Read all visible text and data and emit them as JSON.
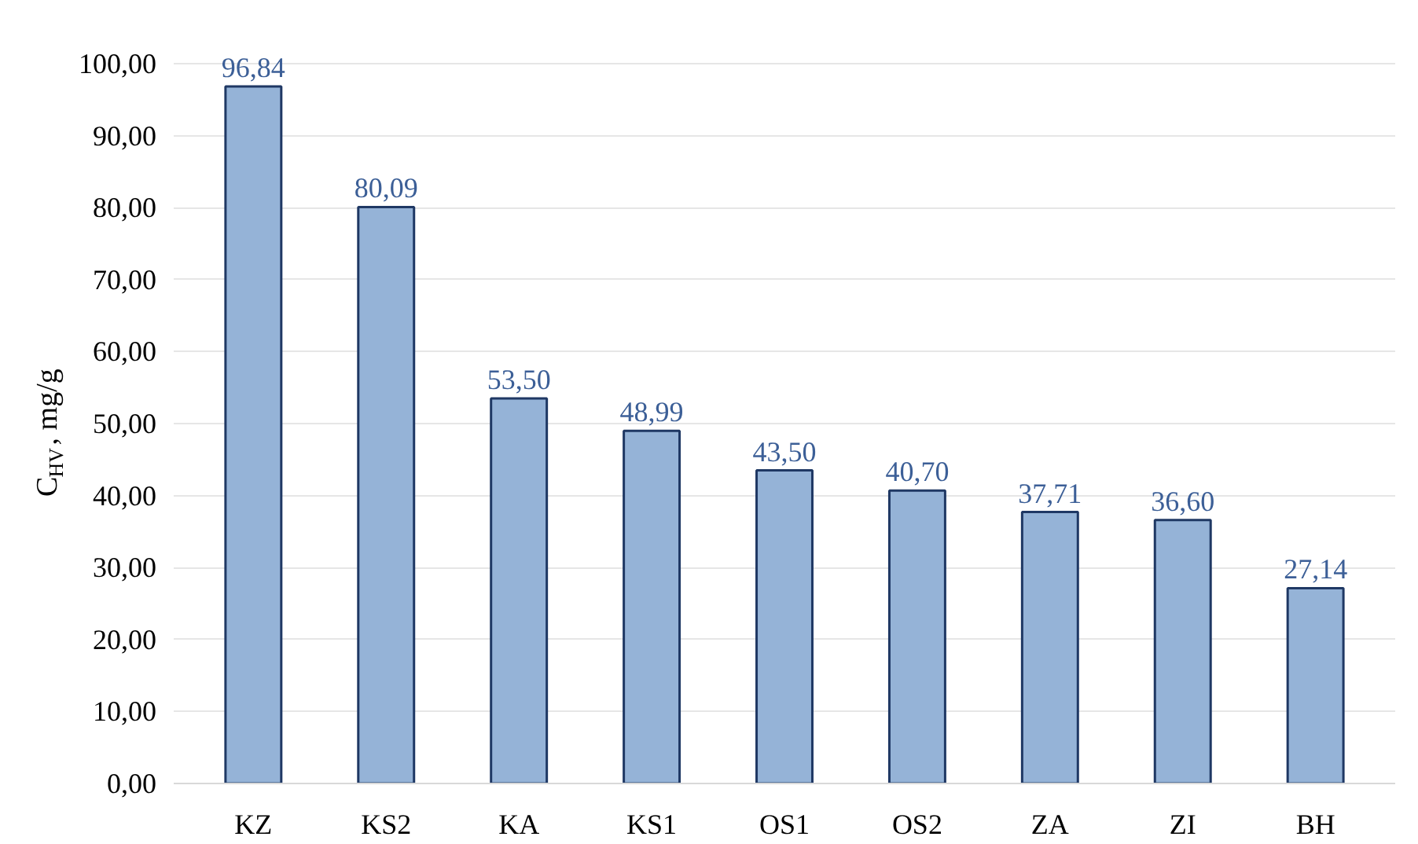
{
  "chart_data": {
    "type": "bar",
    "ylabel": "C$_{HV}$, mg/g",
    "categories": [
      "KZ",
      "KS2",
      "KA",
      "KS1",
      "OS1",
      "OS2",
      "ZA",
      "ZI",
      "BH"
    ],
    "values": [
      96.84,
      80.09,
      53.5,
      48.99,
      43.5,
      40.7,
      37.71,
      36.6,
      27.14
    ],
    "value_labels": [
      "96,84",
      "80,09",
      "53,50",
      "48,99",
      "43,50",
      "40,70",
      "37,71",
      "36,60",
      "27,14"
    ],
    "color": "#95b3d7",
    "ylim": [
      0,
      100
    ],
    "yticks": [
      {
        "value": 0,
        "label": "0,00"
      },
      {
        "value": 10,
        "label": "10,00"
      },
      {
        "value": 20,
        "label": "20,00"
      },
      {
        "value": 30,
        "label": "30,00"
      },
      {
        "value": 40,
        "label": "40,00"
      },
      {
        "value": 50,
        "label": "50,00"
      },
      {
        "value": 60,
        "label": "60,00"
      },
      {
        "value": 70,
        "label": "70,00"
      },
      {
        "value": 80,
        "label": "80,00"
      },
      {
        "value": 90,
        "label": "90,00"
      },
      {
        "value": 100,
        "label": "100,00"
      }
    ],
    "grid": "y"
  }
}
